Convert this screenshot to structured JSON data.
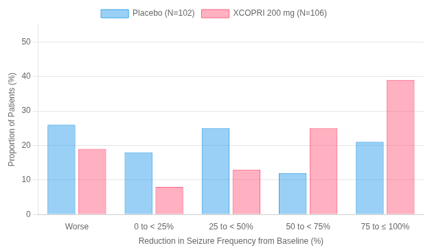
{
  "chart_data": {
    "type": "bar",
    "categories": [
      "Worse",
      "0 to < 25%",
      "25 to < 50%",
      "50 to < 75%",
      "75 to ≤ 100%"
    ],
    "series": [
      {
        "name": "Placebo (N=102)",
        "values": [
          26,
          18,
          25,
          12,
          21
        ]
      },
      {
        "name": "XCOPRI 200 mg (N=106)",
        "values": [
          19,
          8,
          13,
          25,
          39
        ]
      }
    ],
    "xlabel": "Reduction in Seizure Frequency from Baseline (%)",
    "ylabel": "Proportion of Patients (%)",
    "ylim": [
      0,
      55
    ],
    "yticks": [
      0,
      10,
      20,
      30,
      40,
      50
    ],
    "grid": true,
    "legend": "top"
  }
}
